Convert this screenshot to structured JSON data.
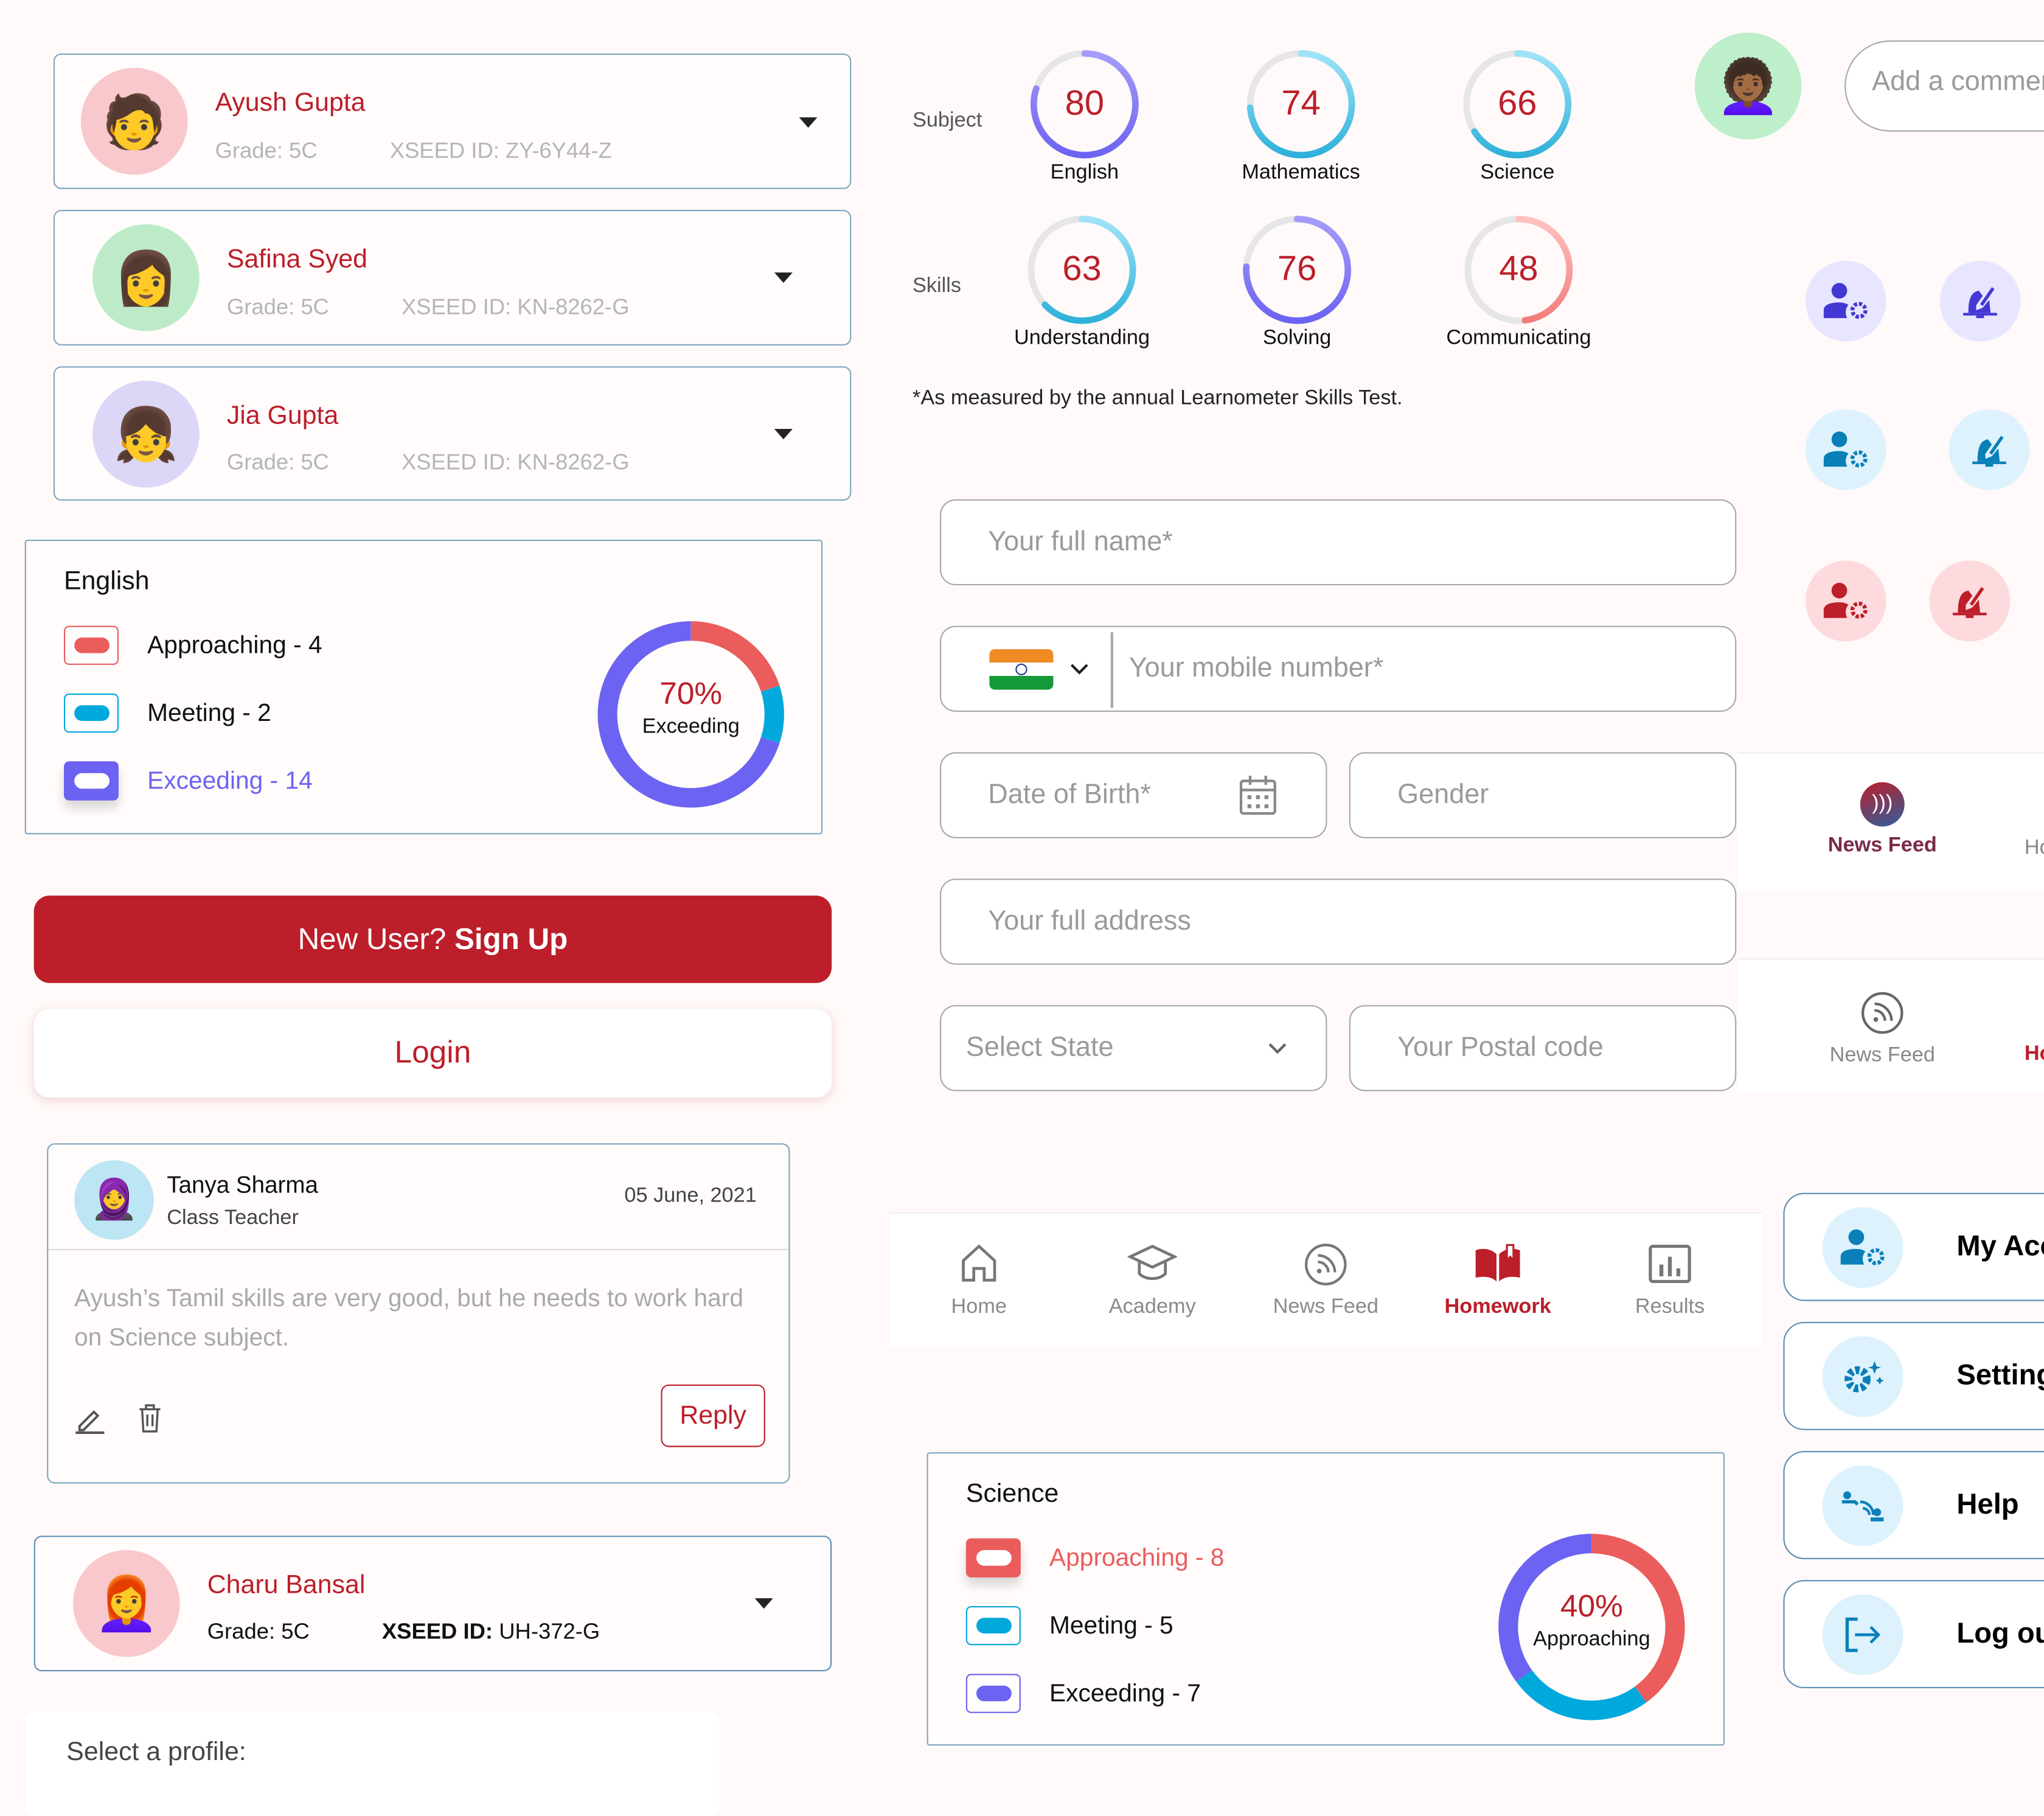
{
  "profiles": [
    {
      "name": "Ayush Gupta",
      "grade": "Grade: 5C",
      "xseed": "XSEED ID: ZY-6Y44-Z",
      "avatar_bg": "#F9C8CC"
    },
    {
      "name": "Safina Syed",
      "grade": "Grade: 5C",
      "xseed": "XSEED ID: KN-8262-G",
      "avatar_bg": "#BDEBC8"
    },
    {
      "name": "Jia Gupta",
      "grade": "Grade: 5C",
      "xseed": "XSEED ID: KN-8262-G",
      "avatar_bg": "#DCD6F7"
    },
    {
      "name": "Charu Bansal",
      "grade": "Grade: 5C",
      "xseed_label": "XSEED ID:",
      "xseed_value": "UH-372-G",
      "avatar_bg": "#F9C8CC"
    }
  ],
  "english_card": {
    "title": "English",
    "approaching": "Approaching - 4",
    "meeting": "Meeting - 2",
    "exceeding": "Exceeding - 14",
    "percent": "70%",
    "status": "Exceeding",
    "counts": {
      "approaching": 4,
      "meeting": 2,
      "exceeding": 14
    }
  },
  "science_card": {
    "title": "Science",
    "approaching": "Approaching - 8",
    "meeting": "Meeting - 5",
    "exceeding": "Exceeding - 7",
    "percent": "40%",
    "status": "Approaching",
    "counts": {
      "approaching": 8,
      "meeting": 5,
      "exceeding": 7
    }
  },
  "colors": {
    "brand": "#BC1E2A",
    "approaching": "#EB5C5C",
    "meeting": "#00A8DC",
    "exceeding": "#6C63F2"
  },
  "auth": {
    "signup_prefix": "New User? ",
    "signup_bold": "Sign Up",
    "login": "Login"
  },
  "comment": {
    "author": "Tanya Sharma",
    "role": "Class Teacher",
    "date": "05 June, 2021",
    "text": "Ayush’s Tamil skills are very good, but he needs to work hard on Science subject.",
    "reply": "Reply"
  },
  "select_profile": "Select a profile:",
  "scores": {
    "subject_label": "Subject",
    "skills_label": "Skills",
    "subjects": [
      {
        "name": "English",
        "value": 80,
        "scheme": "purple"
      },
      {
        "name": "Mathematics",
        "value": 74,
        "scheme": "blue"
      },
      {
        "name": "Science",
        "value": 66,
        "scheme": "blue"
      }
    ],
    "skills": [
      {
        "name": "Understanding",
        "value": 63,
        "scheme": "blue"
      },
      {
        "name": "Solving",
        "value": 76,
        "scheme": "purple"
      },
      {
        "name": "Communicating",
        "value": 48,
        "scheme": "red"
      }
    ],
    "footnote": "*As measured by the annual Learnometer Skills Test."
  },
  "form": {
    "full_name": "Your full name*",
    "mobile": "Your mobile number*",
    "dob": "Date of Birth*",
    "gender": "Gender",
    "address": "Your full address",
    "state": "Select State",
    "postal": "Your Postal code"
  },
  "bottom_nav": [
    {
      "label": "Home",
      "icon": "home-icon"
    },
    {
      "label": "Academy",
      "icon": "graduation-cap-icon"
    },
    {
      "label": "News Feed",
      "icon": "rss-icon"
    },
    {
      "label": "Homework",
      "icon": "book-icon",
      "active": true
    },
    {
      "label": "Results",
      "icon": "bar-chart-icon"
    }
  ],
  "comment_input": {
    "placeholder": "Add a comment"
  },
  "tabs_active": {
    "label": "News Feed",
    "next": "Ho"
  },
  "tabs_inactive": {
    "label": "News Feed",
    "next": "Ho"
  },
  "menu": [
    {
      "label": "My Account",
      "icon": "user-gear-icon"
    },
    {
      "label": "Settings",
      "icon": "gear-sparkle-icon"
    },
    {
      "label": "Help",
      "icon": "help-signal-icon"
    },
    {
      "label": "Log out",
      "icon": "logout-icon"
    }
  ]
}
